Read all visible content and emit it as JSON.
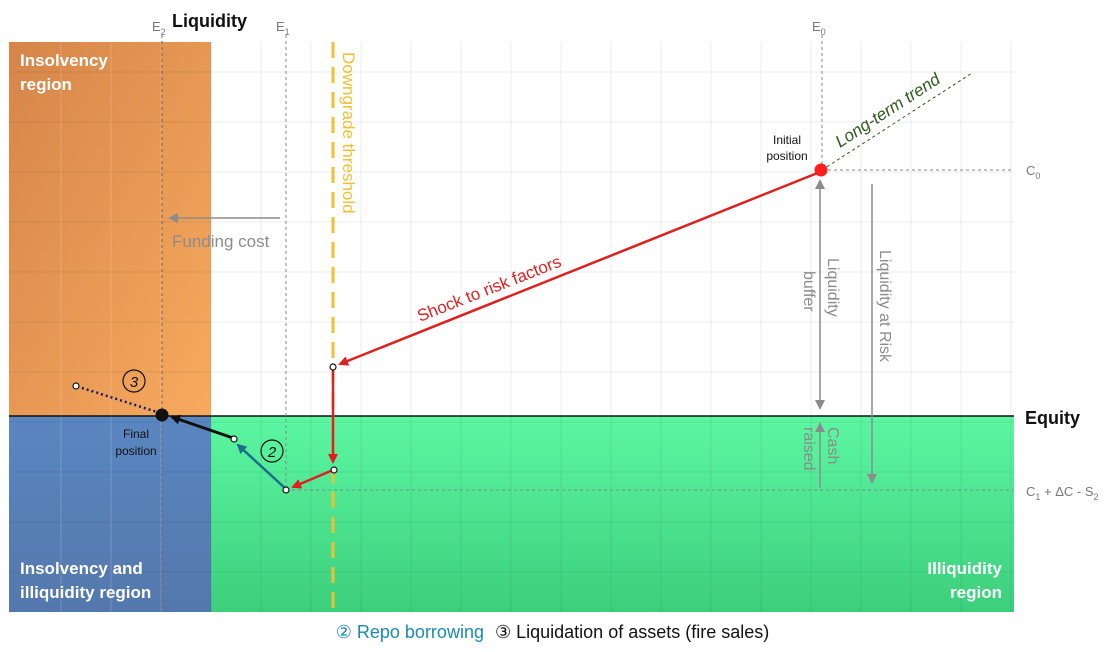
{
  "axes": {
    "y_label": "Liquidity",
    "x_label": "Equity",
    "e2": "E",
    "e2_sub": "2",
    "e1": "E",
    "e1_sub": "1",
    "e0": "E",
    "e0_sub": "0",
    "c0": "C",
    "c0_sub": "0",
    "c1_a": "C",
    "c1_sub": "1",
    "c1_b": " + ΔC - S",
    "c1_sub2": "2"
  },
  "regions": {
    "insolvency": [
      "Insolvency",
      "region"
    ],
    "insolvency_illiquidity": [
      "Insolvency and",
      "illiquidity region"
    ],
    "illiquidity": [
      "Illiquidity",
      "region"
    ]
  },
  "labels": {
    "downgrade_threshold": "Downgrade threshold",
    "funding_cost": "Funding cost",
    "long_term_trend": "Long-term trend",
    "initial_position": [
      "Initial",
      "position"
    ],
    "final_position": [
      "Final",
      "position"
    ],
    "shock": "Shock to risk factors",
    "liquidity_buffer": [
      "Liquidity",
      "buffer"
    ],
    "liquidity_at_risk": "Liquidity at Risk",
    "cash_raised": [
      "Cash",
      "raised"
    ],
    "step2": "2",
    "step3": "3"
  },
  "legend": {
    "repo": "② Repo borrowing",
    "liquidation": "③ Liquidation of assets (fire sales)"
  },
  "colors": {
    "insolvency_top": "#d9854a",
    "insolvency_bottom": "#f2a55c",
    "insolvency_illiquidity": "#5b82b8",
    "illiquidity_top": "#55f09a",
    "illiquidity_bottom": "#3fd17e",
    "shock": "#e02020",
    "threshold": "#f0c030",
    "trend": "#2e5a1c",
    "repo": "#1a6e8a",
    "gray": "#8c8c8c"
  }
}
